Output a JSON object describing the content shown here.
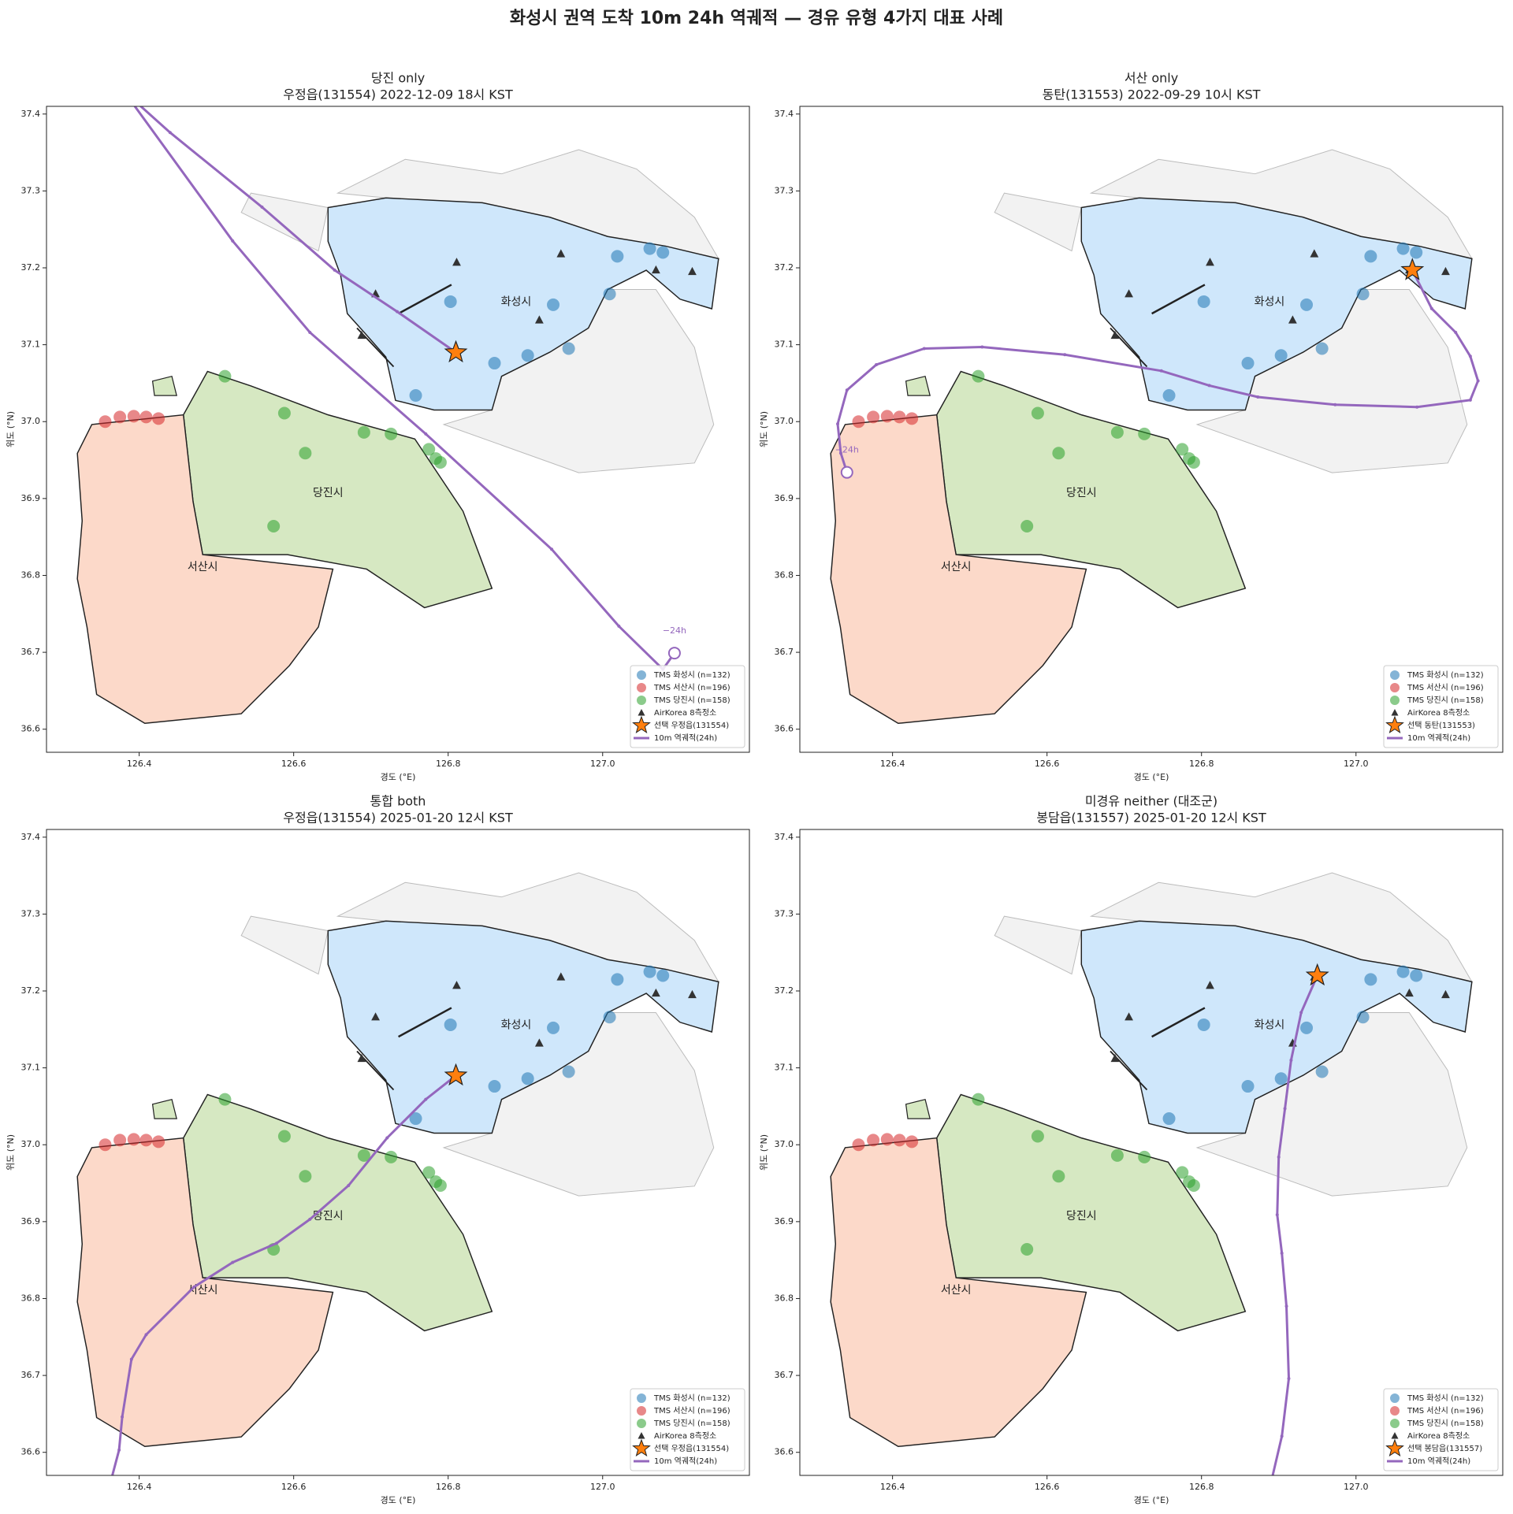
{
  "title": "화성시 권역 도착 10m 24h 역궤적 — 경유 유형 4가지 대표 사례",
  "chart_data": [
    {
      "type": "map",
      "title": "당진 only",
      "subtitle": "우정읍(131554) 2022-12-09 18시 KST",
      "xlabel": "경도 (°E)",
      "ylabel": "위도 (°N)",
      "xlim": [
        126.28,
        127.19
      ],
      "ylim": [
        36.57,
        37.41
      ],
      "xticks": [
        126.4,
        126.6,
        126.8,
        {
          "value": 127,
          "label": "127.0"
        }
      ],
      "yticks": [
        36.6,
        36.7,
        36.8,
        36.9,
        {
          "value": 37,
          "label": "37.0"
        },
        37.1,
        37.2,
        37.3,
        37.4
      ],
      "region_labels": [
        "화성시",
        "당진시",
        "서산시"
      ],
      "legend": "lower right",
      "annotations": [
        "−24h"
      ],
      "series": [
        {
          "name": "TMS 화성시 (n=132)",
          "kind": "circle",
          "color": "#1f77b4",
          "x": [
            126.803,
            126.936,
            126.86,
            126.903,
            126.956,
            126.758,
            127.019,
            127.061,
            127.078,
            127.009
          ],
          "y": [
            37.156,
            37.152,
            37.076,
            37.086,
            37.095,
            37.034,
            37.215,
            37.225,
            37.22,
            37.166
          ]
        },
        {
          "name": "TMS 서산시 (n=196)",
          "kind": "circle",
          "color": "#d62728",
          "x": [
            126.356,
            126.375,
            126.393,
            126.409,
            126.425
          ],
          "y": [
            37,
            37.006,
            37.007,
            37.006,
            37.004
          ]
        },
        {
          "name": "TMS 당진시 (n=158)",
          "kind": "circle",
          "color": "#2ca02c",
          "x": [
            126.511,
            126.588,
            126.615,
            126.574,
            126.691,
            126.726,
            126.775,
            126.784,
            126.79
          ],
          "y": [
            37.059,
            37.011,
            36.959,
            36.864,
            36.986,
            36.984,
            36.964,
            36.952,
            36.947
          ]
        },
        {
          "name": "AirKorea 8측정소",
          "kind": "triangle",
          "color": "#333333",
          "x": [
            126.811,
            126.946,
            127.069,
            127.116,
            126.706,
            126.918,
            126.688
          ],
          "y": [
            37.207,
            37.218,
            37.197,
            37.195,
            37.166,
            37.132,
            37.112
          ]
        },
        {
          "name": "선택 우정읍(131554)",
          "kind": "star",
          "color": "#ff7f0e",
          "x": [
            126.81
          ],
          "y": [
            37.09
          ]
        },
        {
          "name": "10m 역궤적(24h)",
          "kind": "line",
          "color": "#9467bd",
          "x": [
            126.81,
            126.734,
            126.653,
            126.559,
            126.44,
            126.38,
            126.521,
            126.621,
            126.771,
            126.934,
            127.021,
            127.078,
            127.093
          ],
          "y": [
            37.09,
            37.143,
            37.197,
            37.279,
            37.376,
            37.43,
            37.235,
            37.116,
            36.984,
            36.834,
            36.734,
            36.678,
            36.699
          ]
        }
      ]
    },
    {
      "type": "map",
      "title": "서산 only",
      "subtitle": "동탄(131553) 2022-09-29 10시 KST",
      "xlabel": "경도 (°E)",
      "ylabel": "위도 (°N)",
      "xlim": [
        126.28,
        127.19
      ],
      "ylim": [
        36.57,
        37.41
      ],
      "xticks": [
        126.4,
        126.6,
        126.8,
        {
          "value": 127,
          "label": "127.0"
        }
      ],
      "yticks": [
        36.6,
        36.7,
        36.8,
        36.9,
        {
          "value": 37,
          "label": "37.0"
        },
        37.1,
        37.2,
        37.3,
        37.4
      ],
      "region_labels": [
        "화성시",
        "당진시",
        "서산시"
      ],
      "legend": "lower right",
      "annotations": [
        "−24h"
      ],
      "series": [
        {
          "name": "TMS 화성시 (n=132)",
          "kind": "circle",
          "color": "#1f77b4",
          "x": [
            126.803,
            126.936,
            126.86,
            126.903,
            126.956,
            126.758,
            127.019,
            127.061,
            127.078,
            127.009
          ],
          "y": [
            37.156,
            37.152,
            37.076,
            37.086,
            37.095,
            37.034,
            37.215,
            37.225,
            37.22,
            37.166
          ]
        },
        {
          "name": "TMS 서산시 (n=196)",
          "kind": "circle",
          "color": "#d62728",
          "x": [
            126.356,
            126.375,
            126.393,
            126.409,
            126.425
          ],
          "y": [
            37,
            37.006,
            37.007,
            37.006,
            37.004
          ]
        },
        {
          "name": "TMS 당진시 (n=158)",
          "kind": "circle",
          "color": "#2ca02c",
          "x": [
            126.511,
            126.588,
            126.615,
            126.574,
            126.691,
            126.726,
            126.775,
            126.784,
            126.79
          ],
          "y": [
            37.059,
            37.011,
            36.959,
            36.864,
            36.986,
            36.984,
            36.964,
            36.952,
            36.947
          ]
        },
        {
          "name": "AirKorea 8측정소",
          "kind": "triangle",
          "color": "#333333",
          "x": [
            126.811,
            126.946,
            127.069,
            127.116,
            126.706,
            126.918,
            126.688
          ],
          "y": [
            37.207,
            37.218,
            37.197,
            37.195,
            37.166,
            37.132,
            37.112
          ]
        },
        {
          "name": "선택 동탄(131553)",
          "kind": "star",
          "color": "#ff7f0e",
          "x": [
            127.073
          ],
          "y": [
            37.197
          ]
        },
        {
          "name": "10m 역궤적(24h)",
          "kind": "line",
          "color": "#9467bd",
          "x": [
            127.073,
            127.098,
            127.129,
            127.148,
            127.158,
            127.148,
            127.079,
            126.973,
            126.873,
            126.81,
            126.748,
            126.623,
            126.516,
            126.441,
            126.379,
            126.341,
            126.329,
            126.333,
            126.341
          ],
          "y": [
            37.197,
            37.147,
            37.116,
            37.085,
            37.053,
            37.028,
            37.019,
            37.022,
            37.032,
            37.047,
            37.066,
            37.087,
            37.097,
            37.095,
            37.074,
            37.041,
            36.997,
            36.959,
            36.934
          ]
        }
      ]
    },
    {
      "type": "map",
      "title": "통합 both",
      "subtitle": "우정읍(131554) 2025-01-20 12시 KST",
      "xlabel": "경도 (°E)",
      "ylabel": "위도 (°N)",
      "xlim": [
        126.28,
        127.19
      ],
      "ylim": [
        36.57,
        37.41
      ],
      "xticks": [
        126.4,
        126.6,
        126.8,
        {
          "value": 127,
          "label": "127.0"
        }
      ],
      "yticks": [
        36.6,
        36.7,
        36.8,
        36.9,
        {
          "value": 37,
          "label": "37.0"
        },
        37.1,
        37.2,
        37.3,
        37.4
      ],
      "region_labels": [
        "화성시",
        "당진시",
        "서산시"
      ],
      "legend": "lower right",
      "series": [
        {
          "name": "TMS 화성시 (n=132)",
          "kind": "circle",
          "color": "#1f77b4",
          "x": [
            126.803,
            126.936,
            126.86,
            126.903,
            126.956,
            126.758,
            127.019,
            127.061,
            127.078,
            127.009
          ],
          "y": [
            37.156,
            37.152,
            37.076,
            37.086,
            37.095,
            37.034,
            37.215,
            37.225,
            37.22,
            37.166
          ]
        },
        {
          "name": "TMS 서산시 (n=196)",
          "kind": "circle",
          "color": "#d62728",
          "x": [
            126.356,
            126.375,
            126.393,
            126.409,
            126.425
          ],
          "y": [
            37,
            37.006,
            37.007,
            37.006,
            37.004
          ]
        },
        {
          "name": "TMS 당진시 (n=158)",
          "kind": "circle",
          "color": "#2ca02c",
          "x": [
            126.511,
            126.588,
            126.615,
            126.574,
            126.691,
            126.726,
            126.775,
            126.784,
            126.79
          ],
          "y": [
            37.059,
            37.011,
            36.959,
            36.864,
            36.986,
            36.984,
            36.964,
            36.952,
            36.947
          ]
        },
        {
          "name": "AirKorea 8측정소",
          "kind": "triangle",
          "color": "#333333",
          "x": [
            126.811,
            126.946,
            127.069,
            127.116,
            126.706,
            126.918,
            126.688
          ],
          "y": [
            37.207,
            37.218,
            37.197,
            37.195,
            37.166,
            37.132,
            37.112
          ]
        },
        {
          "name": "선택 우정읍(131554)",
          "kind": "star",
          "color": "#ff7f0e",
          "x": [
            126.81
          ],
          "y": [
            37.09
          ]
        },
        {
          "name": "10m 역궤적(24h)",
          "kind": "line",
          "color": "#9467bd",
          "x": [
            126.81,
            126.771,
            126.721,
            126.671,
            126.621,
            126.578,
            126.521,
            126.471,
            126.409,
            126.39,
            126.378,
            126.374,
            126.36
          ],
          "y": [
            37.09,
            37.059,
            37.009,
            36.947,
            36.903,
            36.872,
            36.847,
            36.815,
            36.753,
            36.721,
            36.646,
            36.603,
            36.55
          ]
        }
      ]
    },
    {
      "type": "map",
      "title": "미경유 neither (대조군)",
      "subtitle": "봉담읍(131557) 2025-01-20 12시 KST",
      "xlabel": "경도 (°E)",
      "ylabel": "위도 (°N)",
      "xlim": [
        126.28,
        127.19
      ],
      "ylim": [
        36.57,
        37.41
      ],
      "xticks": [
        126.4,
        126.6,
        126.8,
        {
          "value": 127,
          "label": "127.0"
        }
      ],
      "yticks": [
        36.6,
        36.7,
        36.8,
        36.9,
        {
          "value": 37,
          "label": "37.0"
        },
        37.1,
        37.2,
        37.3,
        37.4
      ],
      "region_labels": [
        "화성시",
        "당진시",
        "서산시"
      ],
      "legend": "lower right",
      "series": [
        {
          "name": "TMS 화성시 (n=132)",
          "kind": "circle",
          "color": "#1f77b4",
          "x": [
            126.803,
            126.936,
            126.86,
            126.903,
            126.956,
            126.758,
            127.019,
            127.061,
            127.078,
            127.009
          ],
          "y": [
            37.156,
            37.152,
            37.076,
            37.086,
            37.095,
            37.034,
            37.215,
            37.225,
            37.22,
            37.166
          ]
        },
        {
          "name": "TMS 서산시 (n=196)",
          "kind": "circle",
          "color": "#d62728",
          "x": [
            126.356,
            126.375,
            126.393,
            126.409,
            126.425
          ],
          "y": [
            37,
            37.006,
            37.007,
            37.006,
            37.004
          ]
        },
        {
          "name": "TMS 당진시 (n=158)",
          "kind": "circle",
          "color": "#2ca02c",
          "x": [
            126.511,
            126.588,
            126.615,
            126.574,
            126.691,
            126.726,
            126.775,
            126.784,
            126.79
          ],
          "y": [
            37.059,
            37.011,
            36.959,
            36.864,
            36.986,
            36.984,
            36.964,
            36.952,
            36.947
          ]
        },
        {
          "name": "AirKorea 8측정소",
          "kind": "triangle",
          "color": "#333333",
          "x": [
            126.811,
            126.946,
            127.069,
            127.116,
            126.706,
            126.918,
            126.688
          ],
          "y": [
            37.207,
            37.218,
            37.197,
            37.195,
            37.166,
            37.132,
            37.112
          ]
        },
        {
          "name": "선택 봉담읍(131557)",
          "kind": "star",
          "color": "#ff7f0e",
          "x": [
            126.95
          ],
          "y": [
            37.22
          ]
        },
        {
          "name": "10m 역궤적(24h)",
          "kind": "line",
          "color": "#9467bd",
          "x": [
            126.95,
            126.929,
            126.916,
            126.908,
            126.9,
            126.898,
            126.904,
            126.91,
            126.913,
            126.904,
            126.891
          ],
          "y": [
            37.22,
            37.172,
            37.11,
            37.047,
            36.984,
            36.909,
            36.859,
            36.79,
            36.696,
            36.621,
            36.565
          ]
        }
      ]
    }
  ]
}
